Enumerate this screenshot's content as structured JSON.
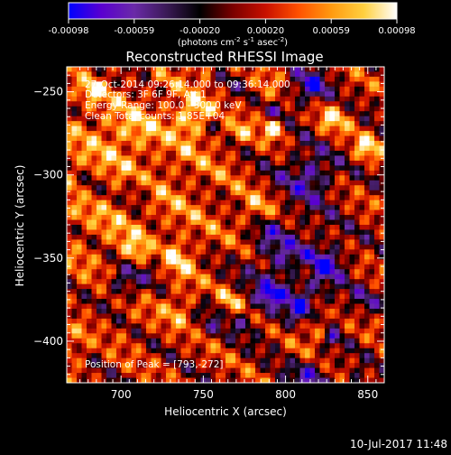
{
  "colorbar": {
    "ticks": [
      "-0.00098",
      "-0.00059",
      "-0.00020",
      "0.00020",
      "0.00059",
      "0.00098"
    ],
    "unit_prefix": "(photons cm",
    "unit_exp1": "-2",
    "unit_mid1": " s",
    "unit_exp2": "-1",
    "unit_mid2": " asec",
    "unit_exp3": "-2",
    "unit_suffix": ")"
  },
  "annotations": {
    "line1": "27-Oct-2014 09:26:14.000 to 09:36:14.000",
    "line2": "Detectors: 3F 6F 9F, Att 1",
    "line3": "Energy Range: 100.0 - 300.0 keV",
    "line4": "Clean    Total counts: 1.85E+04",
    "peak": "Position of Peak = [793,-272]"
  },
  "footer": {
    "timestamp": "10-Jul-2017 11:48"
  },
  "chart_data": {
    "type": "heatmap",
    "title": "Reconstructed RHESSI Image",
    "xlabel": "Heliocentric X (arcsec)",
    "ylabel": "Heliocentric Y (arcsec)",
    "xlim": [
      667,
      860
    ],
    "ylim": [
      -425,
      -235
    ],
    "x_ticks": [
      700,
      750,
      800,
      850
    ],
    "y_ticks": [
      -250,
      -300,
      -350,
      -400
    ],
    "x_tick_labels": [
      "700",
      "750",
      "800",
      "850"
    ],
    "y_tick_labels": [
      "−250",
      "−300",
      "−350",
      "−400"
    ],
    "value_range": [
      -0.00098,
      0.00098
    ],
    "peak_position": [
      793,
      -272
    ],
    "colormap": [
      "#0000ff",
      "#5a00d0",
      "#6a2aa8",
      "#3a1a55",
      "#000000",
      "#7a0000",
      "#c81000",
      "#ff5000",
      "#ff9a10",
      "#ffd040",
      "#ffffff"
    ]
  }
}
